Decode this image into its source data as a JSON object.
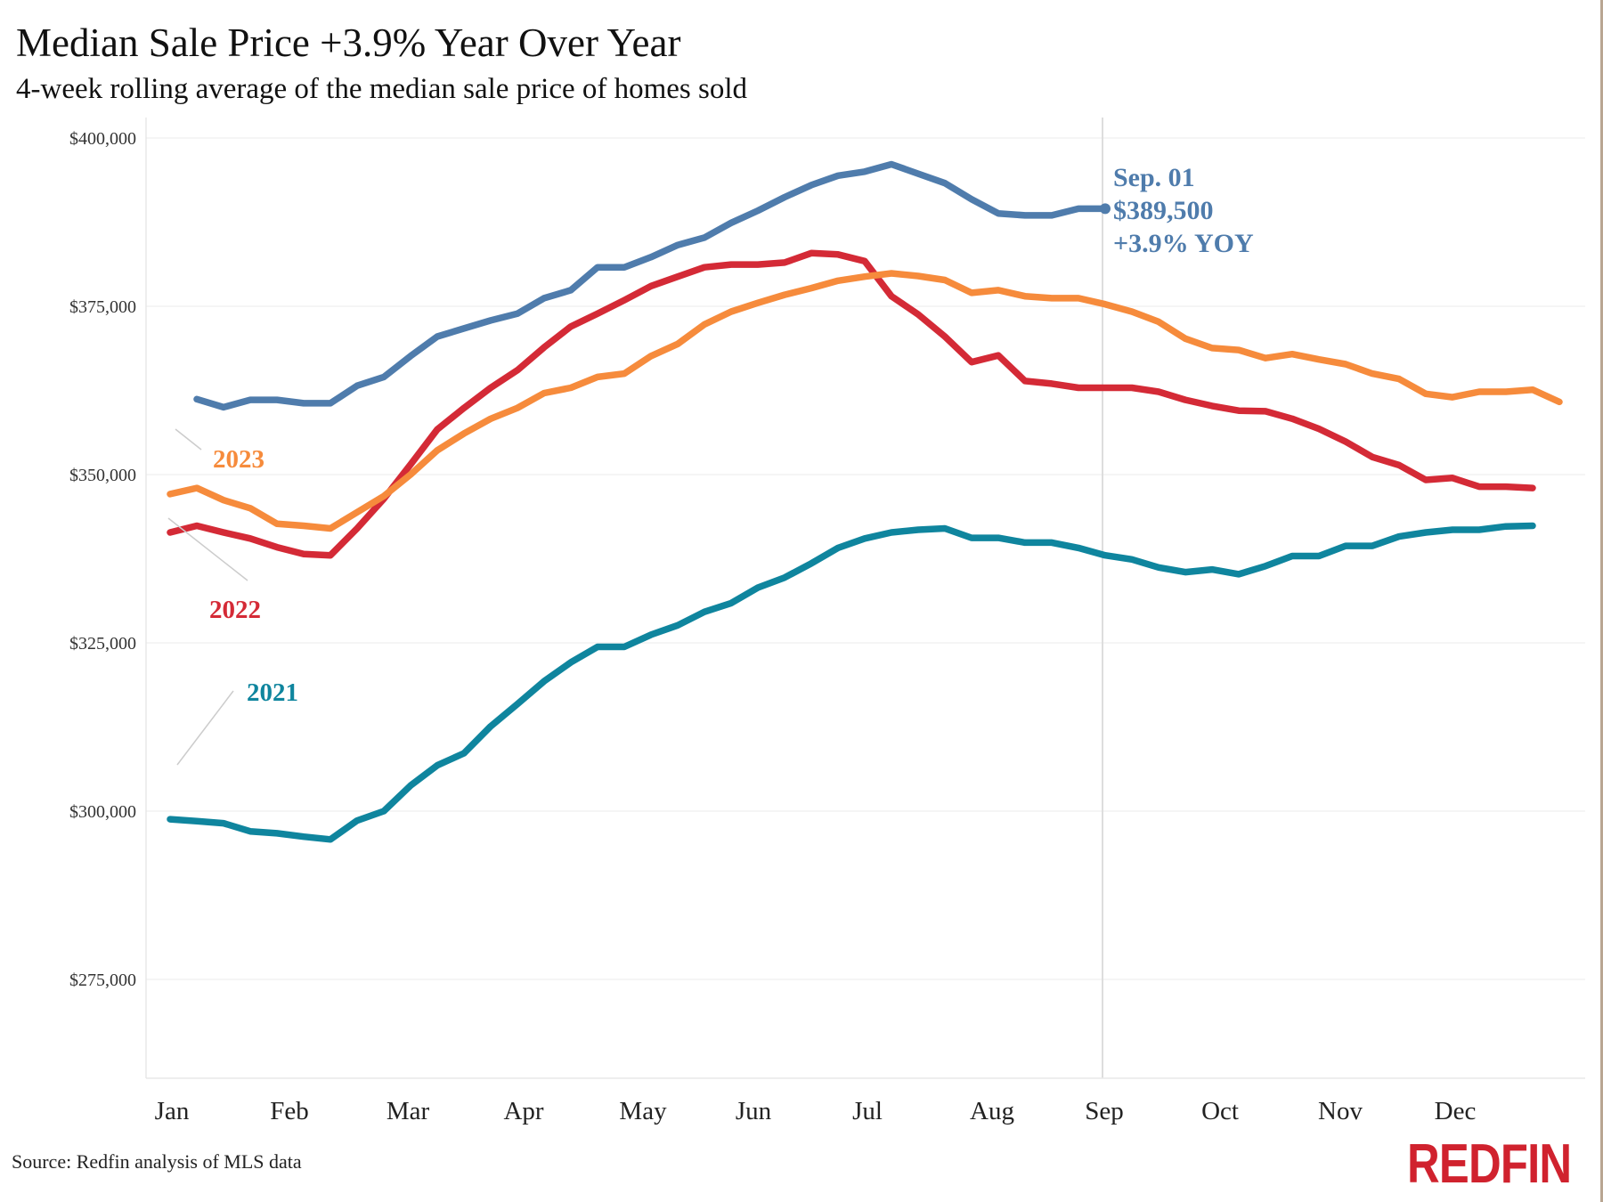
{
  "chart_data": {
    "type": "line",
    "title": "Median Sale Price +3.9% Year Over Year",
    "subtitle": "4-week rolling average of the median sale price of homes sold",
    "x_tick_labels": [
      "Jan",
      "Feb",
      "Mar",
      "Apr",
      "May",
      "Jun",
      "Jul",
      "Aug",
      "Sep",
      "Oct",
      "Nov",
      "Dec"
    ],
    "x_unit": "week of year",
    "y_ticks": [
      400000,
      375000,
      350000,
      325000,
      300000,
      275000
    ],
    "y_tick_labels": [
      "$400,000",
      "$375,000",
      "$350,000",
      "$325,000",
      "$300,000",
      "$275,000"
    ],
    "ylim": [
      260000,
      400000
    ],
    "grid": true,
    "series": [
      {
        "name": "2021",
        "color": "#0f859e",
        "start_week": 1,
        "values": [
          298800,
          298500,
          298200,
          297000,
          296700,
          296200,
          295800,
          298600,
          300000,
          303800,
          306800,
          308600,
          312600,
          315900,
          319300,
          322100,
          324400,
          324400,
          326200,
          327600,
          329600,
          330900,
          333200,
          334700,
          336800,
          339100,
          340500,
          341400,
          341800,
          342000,
          340600,
          340600,
          339900,
          339900,
          339100,
          338000,
          337400,
          336200,
          335500,
          335900,
          335200,
          336400,
          337900,
          337900,
          339400,
          339400,
          340800,
          341400,
          341800,
          341800,
          342300,
          342400
        ]
      },
      {
        "name": "2022",
        "color": "#d42a36",
        "start_week": 1,
        "values": [
          341400,
          342400,
          341400,
          340500,
          339200,
          338200,
          338000,
          342000,
          346400,
          351500,
          356700,
          359900,
          362900,
          365500,
          368900,
          372000,
          373900,
          375900,
          378000,
          379400,
          380800,
          381200,
          381200,
          381500,
          382900,
          382700,
          381700,
          376500,
          373800,
          370500,
          366700,
          367700,
          363900,
          363500,
          362900,
          362900,
          362900,
          362300,
          361100,
          360200,
          359500,
          359400,
          358300,
          356800,
          354900,
          352600,
          351400,
          349200,
          349500,
          348200,
          348200,
          348000
        ]
      },
      {
        "name": "2023",
        "color": "#f68b3c",
        "start_week": 1,
        "values": [
          347100,
          348000,
          346200,
          345000,
          342700,
          342400,
          342000,
          344400,
          346800,
          350000,
          353600,
          356100,
          358300,
          359900,
          362100,
          362900,
          364500,
          365000,
          367600,
          369400,
          372300,
          374200,
          375500,
          376700,
          377700,
          378800,
          379400,
          379900,
          379500,
          378900,
          377000,
          377400,
          376500,
          376200,
          376200,
          375300,
          374200,
          372700,
          370200,
          368800,
          368500,
          367300,
          367900,
          367100,
          366400,
          365000,
          364200,
          362000,
          361500,
          362300,
          362300,
          362600,
          360800
        ]
      },
      {
        "color": "#4f7cac",
        "start_week": 2,
        "values": [
          361200,
          360000,
          361100,
          361100,
          360600,
          360600,
          363200,
          364500,
          367600,
          370500,
          371700,
          372900,
          373900,
          376200,
          377400,
          380800,
          380800,
          382300,
          384100,
          385200,
          387400,
          389200,
          391200,
          393000,
          394400,
          395000,
          396100,
          394700,
          393300,
          390900,
          388800,
          388500,
          388500,
          389500,
          389500
        ]
      }
    ],
    "annotations": {
      "label_2023": "2023",
      "label_2022": "2022",
      "label_2021": "2021",
      "latest_date": "Sep. 01",
      "latest_value": "$389,500",
      "latest_change": "+3.9% YOY"
    }
  },
  "footer": {
    "source": "Source: Redfin analysis of MLS data",
    "logo": "REDFIN"
  }
}
